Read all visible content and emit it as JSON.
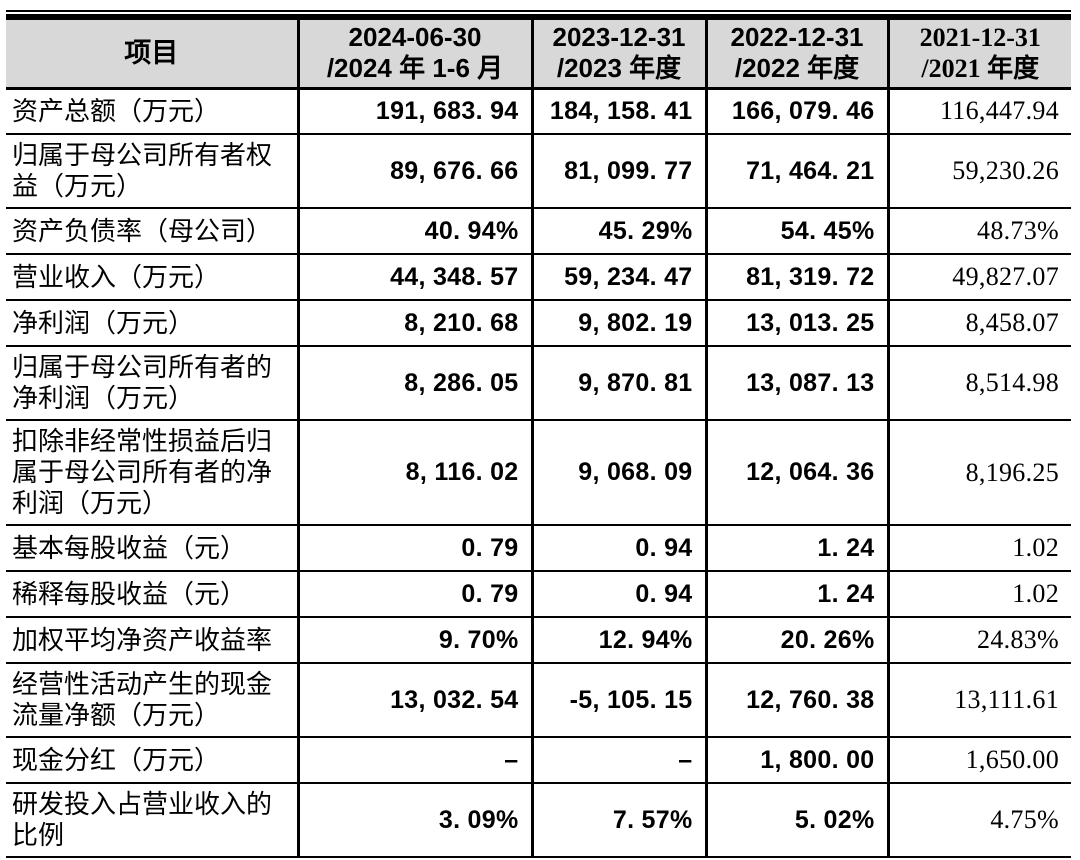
{
  "document": {
    "type": "financial-summary-table",
    "language": "zh-CN"
  },
  "colors": {
    "header_bg": "#d8d8d8",
    "border": "#000000",
    "text": "#000000",
    "page_bg": "#ffffff"
  },
  "table": {
    "columns": [
      {
        "label": "项目"
      },
      {
        "line1": "2024-06-30",
        "line2": "/2024 年 1-6 月"
      },
      {
        "line1": "2023-12-31",
        "line2": "/2023 年度"
      },
      {
        "line1": "2022-12-31",
        "line2": "/2022 年度"
      },
      {
        "line1": "2021-12-31",
        "line2": "/2021 年度"
      }
    ],
    "rows": [
      {
        "label": "资产总额（万元）",
        "values": [
          "191, 683. 94",
          "184, 158. 41",
          "166, 079. 46",
          "116,447.94"
        ]
      },
      {
        "label": "归属于母公司所有者权益（万元）",
        "values": [
          "89, 676. 66",
          "81, 099. 77",
          "71, 464. 21",
          "59,230.26"
        ]
      },
      {
        "label": "资产负债率（母公司）",
        "values": [
          "40. 94%",
          "45. 29%",
          "54. 45%",
          "48.73%"
        ]
      },
      {
        "label": "营业收入（万元）",
        "values": [
          "44, 348. 57",
          "59, 234. 47",
          "81, 319. 72",
          "49,827.07"
        ]
      },
      {
        "label": "净利润（万元）",
        "values": [
          "8, 210. 68",
          "9, 802. 19",
          "13, 013. 25",
          "8,458.07"
        ]
      },
      {
        "label": "归属于母公司所有者的净利润（万元）",
        "values": [
          "8, 286. 05",
          "9, 870. 81",
          "13, 087. 13",
          "8,514.98"
        ]
      },
      {
        "label": "扣除非经常性损益后归属于母公司所有者的净利润（万元）",
        "values": [
          "8, 116. 02",
          "9, 068. 09",
          "12, 064. 36",
          "8,196.25"
        ]
      },
      {
        "label": "基本每股收益（元）",
        "values": [
          "0. 79",
          "0. 94",
          "1. 24",
          "1.02"
        ]
      },
      {
        "label": "稀释每股收益（元）",
        "values": [
          "0. 79",
          "0. 94",
          "1. 24",
          "1.02"
        ]
      },
      {
        "label": "加权平均净资产收益率",
        "values": [
          "9. 70%",
          "12. 94%",
          "20. 26%",
          "24.83%"
        ]
      },
      {
        "label": "经营性活动产生的现金流量净额（万元）",
        "values": [
          "13, 032. 54",
          "-5, 105. 15",
          "12, 760. 38",
          "13,111.61"
        ]
      },
      {
        "label": "现金分红（万元）",
        "values": [
          "–",
          "–",
          "1, 800. 00",
          "1,650.00"
        ]
      },
      {
        "label": "研发投入占营业收入的比例",
        "values": [
          "3. 09%",
          "7. 57%",
          "5. 02%",
          "4.75%"
        ]
      }
    ]
  }
}
